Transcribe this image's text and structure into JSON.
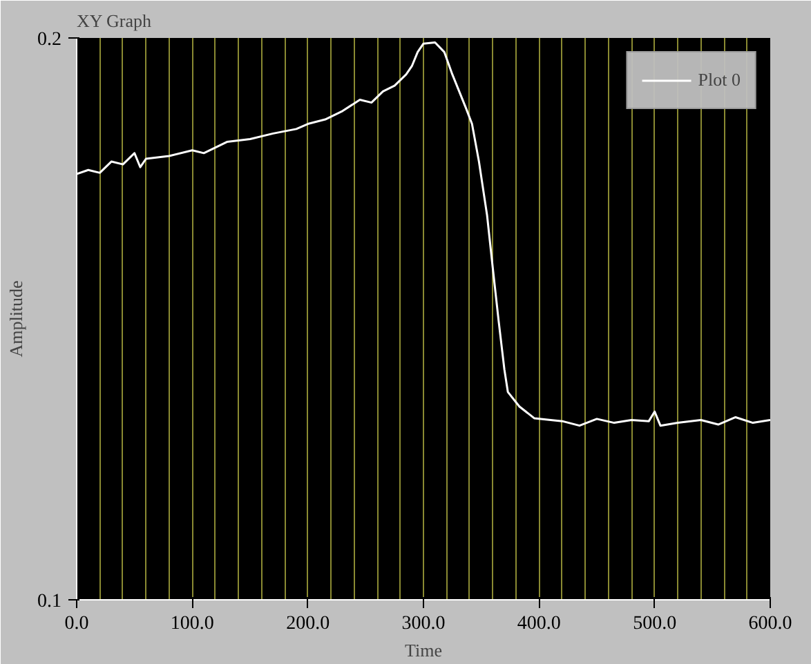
{
  "chart_data": {
    "type": "line",
    "title": "XY Graph",
    "xlabel": "Time",
    "ylabel": "Amplitude",
    "legend": "top right",
    "grid": "x",
    "marker": "none",
    "line_style": "solid",
    "xlim": [
      0,
      600
    ],
    "ylim": [
      0.1,
      0.2
    ],
    "xticks": [
      {
        "value": 0,
        "label": "0.0"
      },
      {
        "value": 20,
        "label": null
      },
      {
        "value": 40,
        "label": null
      },
      {
        "value": 60,
        "label": null
      },
      {
        "value": 80,
        "label": null
      },
      {
        "value": 100,
        "label": "100.0"
      },
      {
        "value": 120,
        "label": null
      },
      {
        "value": 140,
        "label": null
      },
      {
        "value": 160,
        "label": null
      },
      {
        "value": 180,
        "label": null
      },
      {
        "value": 200,
        "label": "200.0"
      },
      {
        "value": 220,
        "label": null
      },
      {
        "value": 240,
        "label": null
      },
      {
        "value": 260,
        "label": null
      },
      {
        "value": 280,
        "label": null
      },
      {
        "value": 300,
        "label": "300.0"
      },
      {
        "value": 320,
        "label": null
      },
      {
        "value": 340,
        "label": null
      },
      {
        "value": 360,
        "label": null
      },
      {
        "value": 380,
        "label": null
      },
      {
        "value": 400,
        "label": "400.0"
      },
      {
        "value": 420,
        "label": null
      },
      {
        "value": 440,
        "label": null
      },
      {
        "value": 460,
        "label": null
      },
      {
        "value": 480,
        "label": null
      },
      {
        "value": 500,
        "label": "500.0"
      },
      {
        "value": 520,
        "label": null
      },
      {
        "value": 540,
        "label": null
      },
      {
        "value": 560,
        "label": null
      },
      {
        "value": 580,
        "label": null
      },
      {
        "value": 600,
        "label": "600.0"
      }
    ],
    "yticks": [
      0.1,
      0.2
    ],
    "x": [
      0,
      10,
      20,
      30,
      40,
      50,
      55,
      60,
      80,
      100,
      110,
      130,
      150,
      170,
      190,
      200,
      215,
      230,
      245,
      255,
      265,
      275,
      285,
      290,
      295,
      300,
      310,
      318,
      325,
      337,
      342,
      348,
      355,
      360,
      365,
      370,
      373,
      383,
      396,
      410,
      420,
      435,
      450,
      465,
      480,
      495,
      500,
      505,
      520,
      540,
      555,
      570,
      585,
      600
    ],
    "series": [
      {
        "name": "Plot 0",
        "color": "#ffffff",
        "values": [
          0.1758,
          0.1765,
          0.176,
          0.178,
          0.1775,
          0.1795,
          0.177,
          0.1785,
          0.179,
          0.18,
          0.1795,
          0.1815,
          0.182,
          0.183,
          0.1838,
          0.1847,
          0.1855,
          0.187,
          0.189,
          0.1885,
          0.1905,
          0.1915,
          0.1935,
          0.195,
          0.1975,
          0.199,
          0.1992,
          0.1975,
          0.1935,
          0.1874,
          0.1847,
          0.178,
          0.1685,
          0.159,
          0.1497,
          0.141,
          0.137,
          0.1344,
          0.1323,
          0.132,
          0.1318,
          0.131,
          0.1322,
          0.1315,
          0.132,
          0.1318,
          0.1335,
          0.131,
          0.1315,
          0.132,
          0.1312,
          0.1325,
          0.1315,
          0.132
        ]
      }
    ]
  }
}
